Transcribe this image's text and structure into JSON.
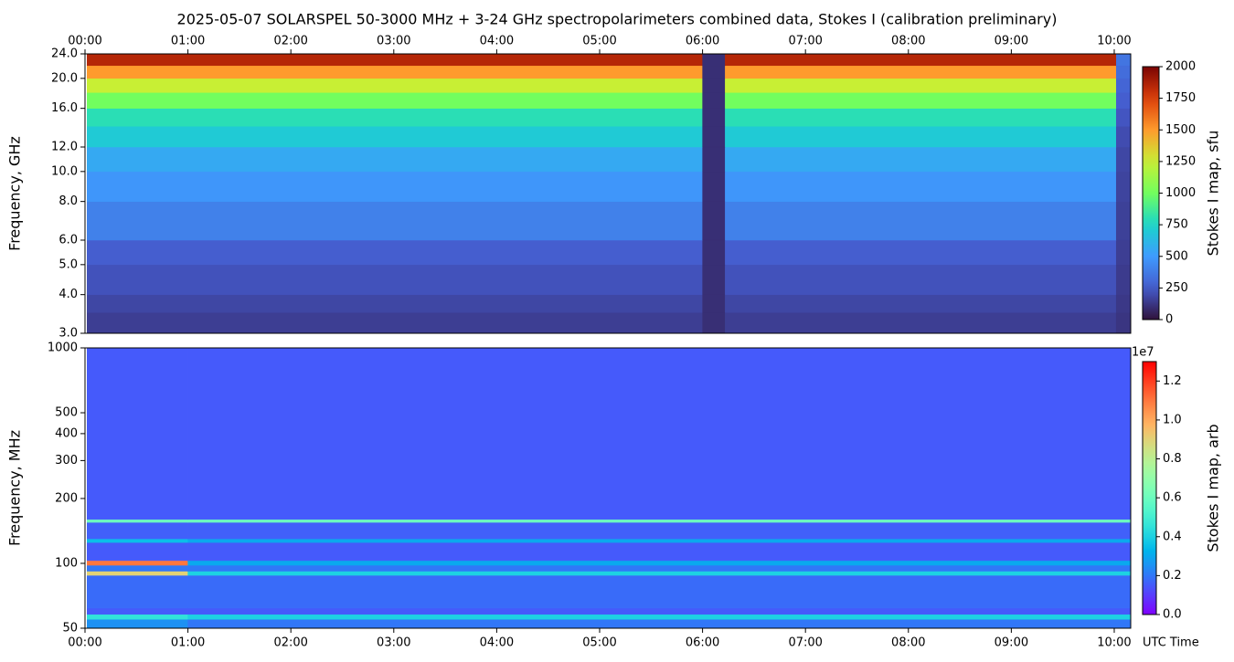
{
  "chart_data": [
    {
      "type": "heatmap",
      "title": "2025-05-07  SOLARSPEL  50-3000 MHz  +  3-24 GHz  spectropolarimeters combined data,  Stokes I  (calibration preliminary)",
      "ylabel": "Frequency, GHz",
      "colorbar_label": "Stokes I map, sfu",
      "colormap": "turbo",
      "yscale": "log",
      "xaxis_position": "top",
      "xlim": [
        0,
        10.16
      ],
      "ylim": [
        3,
        24
      ],
      "xticks": [
        {
          "value": 0,
          "label": "00:00"
        },
        {
          "value": 1,
          "label": "01:00"
        },
        {
          "value": 2,
          "label": "02:00"
        },
        {
          "value": 3,
          "label": "03:00"
        },
        {
          "value": 4,
          "label": "04:00"
        },
        {
          "value": 5,
          "label": "05:00"
        },
        {
          "value": 6,
          "label": "06:00"
        },
        {
          "value": 7,
          "label": "07:00"
        },
        {
          "value": 8,
          "label": "08:00"
        },
        {
          "value": 9,
          "label": "09:00"
        },
        {
          "value": 10,
          "label": "10:00"
        }
      ],
      "yticks": [
        {
          "value": 3,
          "label": "3.0"
        },
        {
          "value": 4,
          "label": "4.0"
        },
        {
          "value": 5,
          "label": "5.0"
        },
        {
          "value": 6,
          "label": "6.0"
        },
        {
          "value": 8,
          "label": "8.0"
        },
        {
          "value": 10,
          "label": "10.0"
        },
        {
          "value": 12,
          "label": "12.0"
        },
        {
          "value": 16,
          "label": "16.0"
        },
        {
          "value": 20,
          "label": "20.0"
        },
        {
          "value": 24,
          "label": "24.0"
        }
      ],
      "vlim": [
        0,
        2000
      ],
      "cticks": [
        0,
        250,
        500,
        750,
        1000,
        1250,
        1500,
        1750,
        2000
      ],
      "x_edges": [
        0.02,
        6.0,
        6.22,
        10.02,
        10.16
      ],
      "y_edges": [
        3,
        3.5,
        4,
        5,
        6,
        8,
        10,
        12,
        14,
        16,
        18,
        20,
        22,
        24
      ],
      "values": [
        [
          150,
          100,
          150,
          120
        ],
        [
          180,
          100,
          180,
          130
        ],
        [
          220,
          100,
          220,
          140
        ],
        [
          260,
          100,
          260,
          150
        ],
        [
          400,
          100,
          400,
          160
        ],
        [
          480,
          100,
          480,
          170
        ],
        [
          560,
          100,
          560,
          180
        ],
        [
          700,
          100,
          700,
          200
        ],
        [
          800,
          100,
          800,
          230
        ],
        [
          1000,
          100,
          1000,
          260
        ],
        [
          1250,
          100,
          1250,
          290
        ],
        [
          1500,
          100,
          1500,
          320
        ],
        [
          1850,
          100,
          1850,
          350
        ]
      ]
    },
    {
      "type": "heatmap",
      "ylabel": "Frequency, MHz",
      "xlabel": "UTC Time",
      "colorbar_label": "Stokes I map, arb",
      "colorbar_offset": "1e7",
      "colormap": "rainbow",
      "yscale": "log",
      "xaxis_position": "bottom",
      "xlim": [
        0,
        10.16
      ],
      "ylim": [
        50,
        1000
      ],
      "xticks": [
        {
          "value": 0,
          "label": "00:00"
        },
        {
          "value": 1,
          "label": "01:00"
        },
        {
          "value": 2,
          "label": "02:00"
        },
        {
          "value": 3,
          "label": "03:00"
        },
        {
          "value": 4,
          "label": "04:00"
        },
        {
          "value": 5,
          "label": "05:00"
        },
        {
          "value": 6,
          "label": "06:00"
        },
        {
          "value": 7,
          "label": "07:00"
        },
        {
          "value": 8,
          "label": "08:00"
        },
        {
          "value": 9,
          "label": "09:00"
        },
        {
          "value": 10,
          "label": "10:00"
        }
      ],
      "yticks": [
        50,
        100,
        200,
        300,
        400,
        500,
        1000
      ],
      "vlim": [
        0,
        13000000
      ],
      "cticks": [
        {
          "value": 0,
          "label": "0.0"
        },
        {
          "value": 2000000,
          "label": "0.2"
        },
        {
          "value": 4000000,
          "label": "0.4"
        },
        {
          "value": 6000000,
          "label": "0.6"
        },
        {
          "value": 8000000,
          "label": "0.8"
        },
        {
          "value": 10000000,
          "label": "1.0"
        },
        {
          "value": 12000000,
          "label": "1.2"
        }
      ],
      "x_edges": [
        0.02,
        1.0,
        10.16
      ],
      "y_edges": [
        50,
        55,
        58,
        62,
        88,
        92,
        98,
        103,
        125,
        130,
        155,
        160,
        1000
      ],
      "values": [
        [
          2500000,
          2000000
        ],
        [
          4500000,
          4000000
        ],
        [
          1500000,
          1500000
        ],
        [
          1800000,
          1800000
        ],
        [
          9000000,
          4000000
        ],
        [
          2000000,
          2000000
        ],
        [
          11000000,
          3000000
        ],
        [
          1500000,
          1500000
        ],
        [
          3500000,
          3000000
        ],
        [
          1600000,
          1600000
        ],
        [
          6000000,
          6000000
        ],
        [
          1500000,
          1500000
        ]
      ]
    }
  ]
}
